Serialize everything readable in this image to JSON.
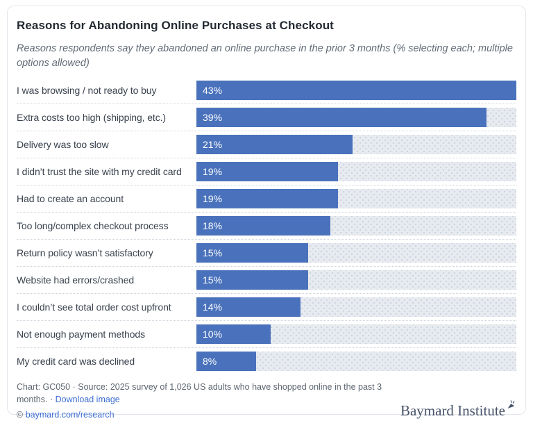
{
  "header": {
    "title": "Reasons for Abandoning Online Purchases at Checkout",
    "subtitle": "Reasons respondents say they abandoned an online purchase in the prior 3 months (% selecting each; multiple options allowed)"
  },
  "chart_data": {
    "type": "bar",
    "orientation": "horizontal",
    "title": "Reasons for Abandoning Online Purchases at Checkout",
    "categories": [
      "I was browsing / not ready to buy",
      "Extra costs too high (shipping, etc.)",
      "Delivery was too slow",
      "I didn’t trust the site with my credit card",
      "Had to create an account",
      "Too long/complex checkout process",
      "Return policy wasn’t satisfactory",
      "Website had errors/crashed",
      "I couldn’t see total order cost upfront",
      "Not enough payment methods",
      "My credit card was declined"
    ],
    "values": [
      43,
      39,
      21,
      19,
      19,
      18,
      15,
      15,
      14,
      10,
      8
    ],
    "value_suffix": "%",
    "xlim": [
      0,
      43
    ],
    "grid": false,
    "legend": false,
    "bar_color": "#4a72bc",
    "track_color": "#e7eaef"
  },
  "footer": {
    "chart_label": "Chart: GC050",
    "dot_separator": "·",
    "source_text": "Source: 2025 survey of 1,026 US adults who have shopped online in the past 3 months.",
    "download_link": "Download image",
    "copyright_symbol": "©",
    "site_link": "baymard.com/research",
    "logo_text": "Baymard Institute"
  },
  "colors": {
    "bar": "#4a72bc",
    "link": "#3e6ed5",
    "logo": "#46526a"
  }
}
